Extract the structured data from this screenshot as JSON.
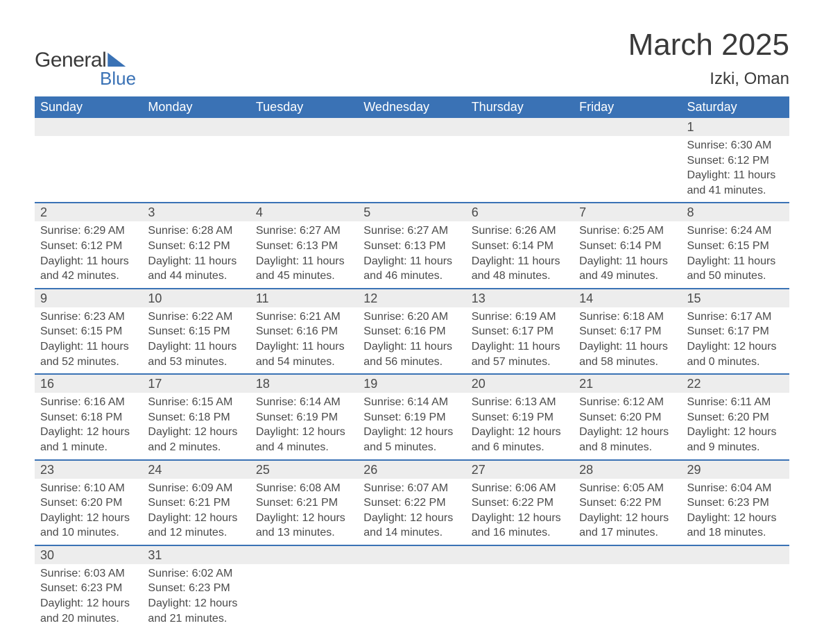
{
  "logo": {
    "text_general": "General",
    "text_blue": "Blue",
    "shape_color": "#3a72b5"
  },
  "title": "March 2025",
  "location": "Izki, Oman",
  "colors": {
    "header_bg": "#3a72b5",
    "header_text": "#ffffff",
    "daynum_bg": "#ededed",
    "row_divider": "#3a72b5",
    "body_text": "#4a4a4a",
    "page_bg": "#ffffff"
  },
  "typography": {
    "title_fontsize": 44,
    "location_fontsize": 24,
    "header_fontsize": 18,
    "daynum_fontsize": 18,
    "detail_fontsize": 16,
    "font_family": "Arial"
  },
  "day_headers": [
    "Sunday",
    "Monday",
    "Tuesday",
    "Wednesday",
    "Thursday",
    "Friday",
    "Saturday"
  ],
  "weeks": [
    [
      null,
      null,
      null,
      null,
      null,
      null,
      {
        "num": "1",
        "sunrise": "Sunrise: 6:30 AM",
        "sunset": "Sunset: 6:12 PM",
        "daylight": "Daylight: 11 hours and 41 minutes."
      }
    ],
    [
      {
        "num": "2",
        "sunrise": "Sunrise: 6:29 AM",
        "sunset": "Sunset: 6:12 PM",
        "daylight": "Daylight: 11 hours and 42 minutes."
      },
      {
        "num": "3",
        "sunrise": "Sunrise: 6:28 AM",
        "sunset": "Sunset: 6:12 PM",
        "daylight": "Daylight: 11 hours and 44 minutes."
      },
      {
        "num": "4",
        "sunrise": "Sunrise: 6:27 AM",
        "sunset": "Sunset: 6:13 PM",
        "daylight": "Daylight: 11 hours and 45 minutes."
      },
      {
        "num": "5",
        "sunrise": "Sunrise: 6:27 AM",
        "sunset": "Sunset: 6:13 PM",
        "daylight": "Daylight: 11 hours and 46 minutes."
      },
      {
        "num": "6",
        "sunrise": "Sunrise: 6:26 AM",
        "sunset": "Sunset: 6:14 PM",
        "daylight": "Daylight: 11 hours and 48 minutes."
      },
      {
        "num": "7",
        "sunrise": "Sunrise: 6:25 AM",
        "sunset": "Sunset: 6:14 PM",
        "daylight": "Daylight: 11 hours and 49 minutes."
      },
      {
        "num": "8",
        "sunrise": "Sunrise: 6:24 AM",
        "sunset": "Sunset: 6:15 PM",
        "daylight": "Daylight: 11 hours and 50 minutes."
      }
    ],
    [
      {
        "num": "9",
        "sunrise": "Sunrise: 6:23 AM",
        "sunset": "Sunset: 6:15 PM",
        "daylight": "Daylight: 11 hours and 52 minutes."
      },
      {
        "num": "10",
        "sunrise": "Sunrise: 6:22 AM",
        "sunset": "Sunset: 6:15 PM",
        "daylight": "Daylight: 11 hours and 53 minutes."
      },
      {
        "num": "11",
        "sunrise": "Sunrise: 6:21 AM",
        "sunset": "Sunset: 6:16 PM",
        "daylight": "Daylight: 11 hours and 54 minutes."
      },
      {
        "num": "12",
        "sunrise": "Sunrise: 6:20 AM",
        "sunset": "Sunset: 6:16 PM",
        "daylight": "Daylight: 11 hours and 56 minutes."
      },
      {
        "num": "13",
        "sunrise": "Sunrise: 6:19 AM",
        "sunset": "Sunset: 6:17 PM",
        "daylight": "Daylight: 11 hours and 57 minutes."
      },
      {
        "num": "14",
        "sunrise": "Sunrise: 6:18 AM",
        "sunset": "Sunset: 6:17 PM",
        "daylight": "Daylight: 11 hours and 58 minutes."
      },
      {
        "num": "15",
        "sunrise": "Sunrise: 6:17 AM",
        "sunset": "Sunset: 6:17 PM",
        "daylight": "Daylight: 12 hours and 0 minutes."
      }
    ],
    [
      {
        "num": "16",
        "sunrise": "Sunrise: 6:16 AM",
        "sunset": "Sunset: 6:18 PM",
        "daylight": "Daylight: 12 hours and 1 minute."
      },
      {
        "num": "17",
        "sunrise": "Sunrise: 6:15 AM",
        "sunset": "Sunset: 6:18 PM",
        "daylight": "Daylight: 12 hours and 2 minutes."
      },
      {
        "num": "18",
        "sunrise": "Sunrise: 6:14 AM",
        "sunset": "Sunset: 6:19 PM",
        "daylight": "Daylight: 12 hours and 4 minutes."
      },
      {
        "num": "19",
        "sunrise": "Sunrise: 6:14 AM",
        "sunset": "Sunset: 6:19 PM",
        "daylight": "Daylight: 12 hours and 5 minutes."
      },
      {
        "num": "20",
        "sunrise": "Sunrise: 6:13 AM",
        "sunset": "Sunset: 6:19 PM",
        "daylight": "Daylight: 12 hours and 6 minutes."
      },
      {
        "num": "21",
        "sunrise": "Sunrise: 6:12 AM",
        "sunset": "Sunset: 6:20 PM",
        "daylight": "Daylight: 12 hours and 8 minutes."
      },
      {
        "num": "22",
        "sunrise": "Sunrise: 6:11 AM",
        "sunset": "Sunset: 6:20 PM",
        "daylight": "Daylight: 12 hours and 9 minutes."
      }
    ],
    [
      {
        "num": "23",
        "sunrise": "Sunrise: 6:10 AM",
        "sunset": "Sunset: 6:20 PM",
        "daylight": "Daylight: 12 hours and 10 minutes."
      },
      {
        "num": "24",
        "sunrise": "Sunrise: 6:09 AM",
        "sunset": "Sunset: 6:21 PM",
        "daylight": "Daylight: 12 hours and 12 minutes."
      },
      {
        "num": "25",
        "sunrise": "Sunrise: 6:08 AM",
        "sunset": "Sunset: 6:21 PM",
        "daylight": "Daylight: 12 hours and 13 minutes."
      },
      {
        "num": "26",
        "sunrise": "Sunrise: 6:07 AM",
        "sunset": "Sunset: 6:22 PM",
        "daylight": "Daylight: 12 hours and 14 minutes."
      },
      {
        "num": "27",
        "sunrise": "Sunrise: 6:06 AM",
        "sunset": "Sunset: 6:22 PM",
        "daylight": "Daylight: 12 hours and 16 minutes."
      },
      {
        "num": "28",
        "sunrise": "Sunrise: 6:05 AM",
        "sunset": "Sunset: 6:22 PM",
        "daylight": "Daylight: 12 hours and 17 minutes."
      },
      {
        "num": "29",
        "sunrise": "Sunrise: 6:04 AM",
        "sunset": "Sunset: 6:23 PM",
        "daylight": "Daylight: 12 hours and 18 minutes."
      }
    ],
    [
      {
        "num": "30",
        "sunrise": "Sunrise: 6:03 AM",
        "sunset": "Sunset: 6:23 PM",
        "daylight": "Daylight: 12 hours and 20 minutes."
      },
      {
        "num": "31",
        "sunrise": "Sunrise: 6:02 AM",
        "sunset": "Sunset: 6:23 PM",
        "daylight": "Daylight: 12 hours and 21 minutes."
      },
      null,
      null,
      null,
      null,
      null
    ]
  ]
}
